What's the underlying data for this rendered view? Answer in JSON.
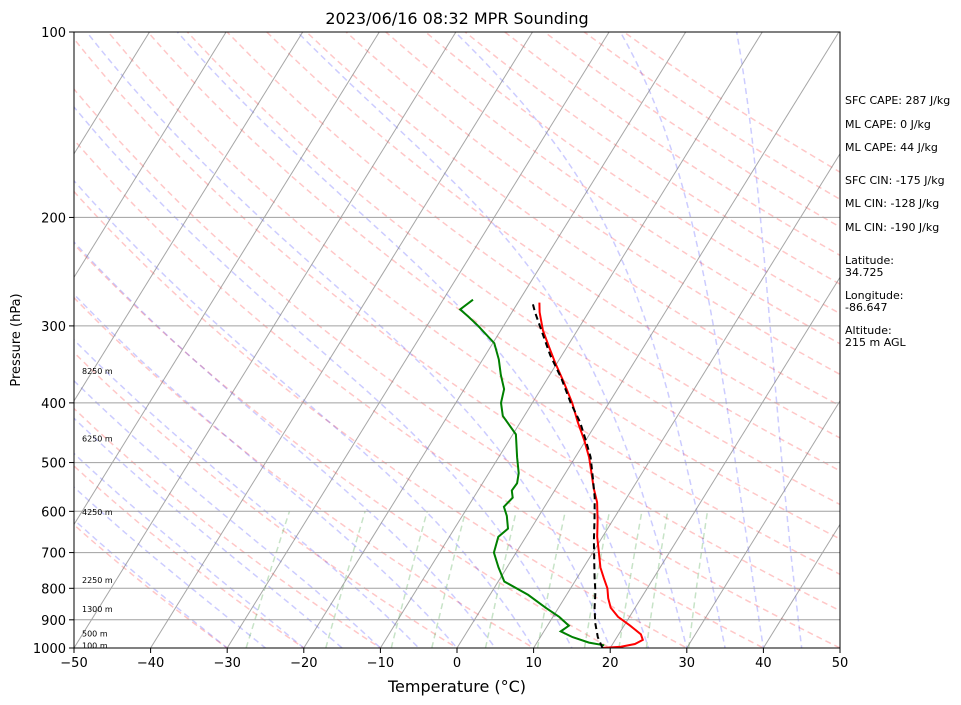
{
  "chart_data": {
    "type": "line",
    "title": "2023/06/16 08:32 MPR Sounding",
    "xlabel": "Temperature (°C)",
    "ylabel": "Pressure (hPa)",
    "xlim": [
      -50,
      50
    ],
    "ylim": [
      1000,
      100
    ],
    "y_scale": "log",
    "grid": true,
    "x_ticks": [
      "−50",
      "−40",
      "−30",
      "−20",
      "−10",
      "0",
      "10",
      "20",
      "30",
      "40",
      "50"
    ],
    "y_ticks": [
      "100",
      "200",
      "300",
      "400",
      "500",
      "600",
      "700",
      "800",
      "900",
      "1000"
    ],
    "y_tick_values": [
      100,
      200,
      300,
      400,
      500,
      600,
      700,
      800,
      900,
      1000
    ],
    "height_labels": [
      {
        "text": "8250 m",
        "p": 355
      },
      {
        "text": "6250 m",
        "p": 457
      },
      {
        "text": "4250 m",
        "p": 601
      },
      {
        "text": "2250 m",
        "p": 776
      },
      {
        "text": "1300 m",
        "p": 865
      },
      {
        "text": "500 m",
        "p": 947
      },
      {
        "text": "100 m",
        "p": 991
      }
    ],
    "series": [
      {
        "role": "temperature",
        "color": "#ff0000",
        "points": [
          [
            18.9,
            1000
          ],
          [
            21.3,
            995
          ],
          [
            22.9,
            985
          ],
          [
            23.6,
            970
          ],
          [
            22.9,
            950
          ],
          [
            20.8,
            920
          ],
          [
            18.5,
            890
          ],
          [
            16.8,
            860
          ],
          [
            15.7,
            830
          ],
          [
            14.8,
            800
          ],
          [
            13.5,
            770
          ],
          [
            12.2,
            740
          ],
          [
            10.8,
            700
          ],
          [
            9.3,
            660
          ],
          [
            8.0,
            620
          ],
          [
            6.5,
            580
          ],
          [
            4.9,
            550
          ],
          [
            3.4,
            520
          ],
          [
            1.8,
            490
          ],
          [
            -0.2,
            460
          ],
          [
            -2.5,
            430
          ],
          [
            -4.8,
            400
          ],
          [
            -7.6,
            370
          ],
          [
            -10.2,
            345
          ],
          [
            -12.3,
            325
          ],
          [
            -14.5,
            305
          ],
          [
            -16.4,
            285
          ],
          [
            -17.2,
            275
          ]
        ]
      },
      {
        "role": "dewpoint",
        "color": "#008000",
        "points": [
          [
            19.0,
            990
          ],
          [
            16.8,
            980
          ],
          [
            14.2,
            960
          ],
          [
            12.2,
            940
          ],
          [
            12.8,
            920
          ],
          [
            10.8,
            890
          ],
          [
            8.3,
            860
          ],
          [
            5.0,
            820
          ],
          [
            0.8,
            780
          ],
          [
            -1.1,
            740
          ],
          [
            -2.9,
            700
          ],
          [
            -3.6,
            660
          ],
          [
            -3.0,
            640
          ],
          [
            -4.2,
            610
          ],
          [
            -5.3,
            590
          ],
          [
            -4.9,
            570
          ],
          [
            -5.6,
            555
          ],
          [
            -5.5,
            540
          ],
          [
            -6.1,
            520
          ],
          [
            -7.6,
            490
          ],
          [
            -9.6,
            450
          ],
          [
            -12.8,
            420
          ],
          [
            -14.1,
            400
          ],
          [
            -14.8,
            380
          ],
          [
            -16.4,
            360
          ],
          [
            -17.9,
            340
          ],
          [
            -19.8,
            320
          ],
          [
            -23.3,
            300
          ],
          [
            -25.3,
            290
          ],
          [
            -27.0,
            282
          ],
          [
            -26.1,
            272
          ]
        ]
      },
      {
        "role": "parcel",
        "color": "#000000",
        "points": [
          [
            19.0,
            1000
          ],
          [
            17.5,
            960
          ],
          [
            16.0,
            910
          ],
          [
            14.7,
            860
          ],
          [
            13.5,
            810
          ],
          [
            12.3,
            770
          ],
          [
            10.8,
            720
          ],
          [
            9.2,
            670
          ],
          [
            7.6,
            620
          ],
          [
            5.8,
            570
          ],
          [
            4.0,
            530
          ],
          [
            2.0,
            490
          ],
          [
            0.0,
            460
          ],
          [
            -2.2,
            430
          ],
          [
            -5.0,
            400
          ],
          [
            -8.2,
            365
          ],
          [
            -11.5,
            335
          ],
          [
            -14.7,
            305
          ],
          [
            -17.0,
            285
          ],
          [
            -18.1,
            275
          ]
        ]
      }
    ]
  },
  "stats": {
    "sfc_cape": "SFC CAPE: 287 J/kg",
    "ml_cape_a": "ML CAPE: 0 J/kg",
    "ml_cape_b": "ML CAPE: 44 J/kg",
    "sfc_cin": "SFC CIN: -175 J/kg",
    "ml_cin_a": "ML CIN: -128 J/kg",
    "ml_cin_b": "ML CIN: -190 J/kg",
    "lat_label": "Latitude:",
    "lat_value": "34.725",
    "lon_label": "Longitude:",
    "lon_value": "-86.647",
    "alt_label": "Altitude:",
    "alt_value": "215 m AGL"
  }
}
